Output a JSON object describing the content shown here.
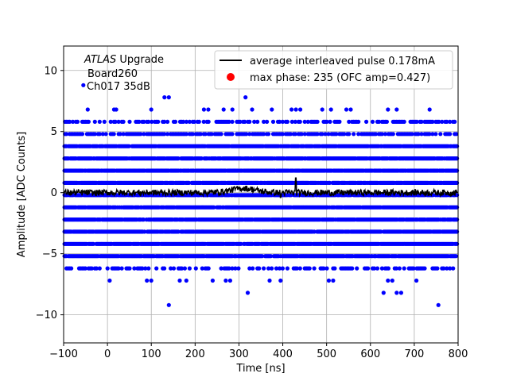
{
  "chart_data": {
    "type": "scatter",
    "xlabel": "Time [ns]",
    "ylabel": "Amplitude [ADC Counts]",
    "xlim": [
      -100,
      800
    ],
    "ylim": [
      -12.3,
      12.0
    ],
    "grid": true,
    "x_ticks": [
      -100,
      0,
      100,
      200,
      300,
      400,
      500,
      600,
      700,
      800
    ],
    "y_ticks": [
      -10,
      -5,
      0,
      5,
      10
    ],
    "annotation": {
      "line1_italic": "ATLAS",
      "line1_rest": " Upgrade",
      "line2": "Board260",
      "line3": "Ch017 35dB"
    },
    "legend": {
      "placement": "top-right",
      "entries": [
        {
          "label": "average interleaved pulse 0.178mA",
          "marker": "line",
          "color": "#000000"
        },
        {
          "label": "max phase: 235 (OFC amp=0.427)",
          "marker": "dot",
          "color": "#ff0000"
        }
      ]
    },
    "series": [
      {
        "kind": "scatter",
        "color": "#0000ff",
        "dense_levels": [
          -5.2,
          -4.2,
          -3.2,
          -2.2,
          -1.2,
          -0.2,
          0.8,
          1.8,
          2.8,
          3.8
        ],
        "sparse_levels": [
          -6.2,
          4.8,
          5.8
        ],
        "points": [
          [
            -55,
            8.8
          ],
          [
            -45,
            6.8
          ],
          [
            15,
            6.8
          ],
          [
            20,
            6.8
          ],
          [
            130,
            7.8
          ],
          [
            140,
            7.8
          ],
          [
            100,
            6.8
          ],
          [
            220,
            6.8
          ],
          [
            230,
            6.8
          ],
          [
            265,
            6.8
          ],
          [
            285,
            6.8
          ],
          [
            315,
            7.8
          ],
          [
            330,
            6.8
          ],
          [
            375,
            6.8
          ],
          [
            420,
            6.8
          ],
          [
            430,
            6.8
          ],
          [
            440,
            6.8
          ],
          [
            490,
            6.8
          ],
          [
            510,
            6.8
          ],
          [
            545,
            6.8
          ],
          [
            555,
            6.8
          ],
          [
            640,
            6.8
          ],
          [
            660,
            6.8
          ],
          [
            735,
            6.8
          ],
          [
            5,
            -7.2
          ],
          [
            90,
            -7.2
          ],
          [
            100,
            -7.2
          ],
          [
            165,
            -7.2
          ],
          [
            180,
            -7.2
          ],
          [
            240,
            -7.2
          ],
          [
            270,
            -7.2
          ],
          [
            280,
            -7.2
          ],
          [
            370,
            -7.2
          ],
          [
            395,
            -7.2
          ],
          [
            505,
            -7.2
          ],
          [
            515,
            -7.2
          ],
          [
            640,
            -7.2
          ],
          [
            650,
            -7.2
          ],
          [
            705,
            -7.2
          ],
          [
            140,
            -9.2
          ],
          [
            320,
            -8.2
          ],
          [
            630,
            -8.2
          ],
          [
            660,
            -8.2
          ],
          [
            670,
            -8.2
          ],
          [
            755,
            -9.2
          ]
        ]
      },
      {
        "kind": "line",
        "name": "average interleaved pulse 0.178mA",
        "color": "#000000",
        "x_range": [
          -100,
          800
        ],
        "baseline": 0.0,
        "noise": 0.25,
        "bump": {
          "center": 310,
          "width": 40,
          "height": 0.35
        },
        "spikes": [
          [
            430,
            1.2
          ],
          [
            395,
            -0.4
          ]
        ]
      }
    ]
  }
}
